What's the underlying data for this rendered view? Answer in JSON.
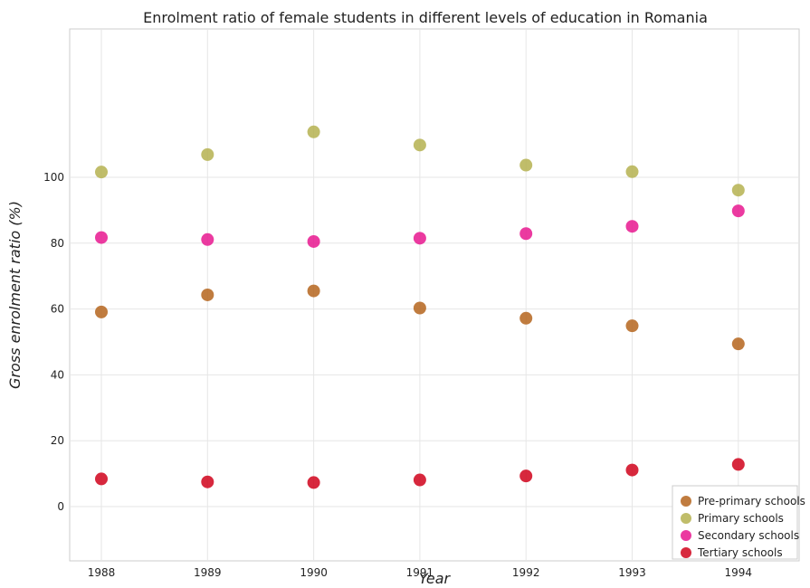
{
  "chart_data": {
    "type": "scatter",
    "title": "Enrolment ratio of female students in different levels of education in Romania",
    "xlabel": "Year",
    "ylabel": "Gross enrolment ratio (%)",
    "x": [
      "1988",
      "1989",
      "1990",
      "1991",
      "1992",
      "1993",
      "1994"
    ],
    "ylim": [
      0,
      120
    ],
    "yticks": [
      "0",
      "20",
      "40",
      "60",
      "80",
      "100"
    ],
    "grid": true,
    "legend_position": "bottom-right",
    "series": [
      {
        "name": "Pre-primary schools",
        "color": "#b5651d",
        "values": [
          59.1,
          64.3,
          65.5,
          60.3,
          57.2,
          54.9,
          49.4
        ]
      },
      {
        "name": "Primary schools",
        "color": "#b5b150",
        "values": [
          101.6,
          106.9,
          113.8,
          109.8,
          103.7,
          101.7,
          96.1
        ]
      },
      {
        "name": "Secondary schools",
        "color": "#e8178f",
        "values": [
          81.7,
          81.1,
          80.5,
          81.5,
          82.9,
          85.1,
          89.8
        ]
      },
      {
        "name": "Tertiary schools",
        "color": "#d0021b",
        "values": [
          8.4,
          7.5,
          7.3,
          8.1,
          9.3,
          11.1,
          12.8
        ]
      }
    ]
  }
}
